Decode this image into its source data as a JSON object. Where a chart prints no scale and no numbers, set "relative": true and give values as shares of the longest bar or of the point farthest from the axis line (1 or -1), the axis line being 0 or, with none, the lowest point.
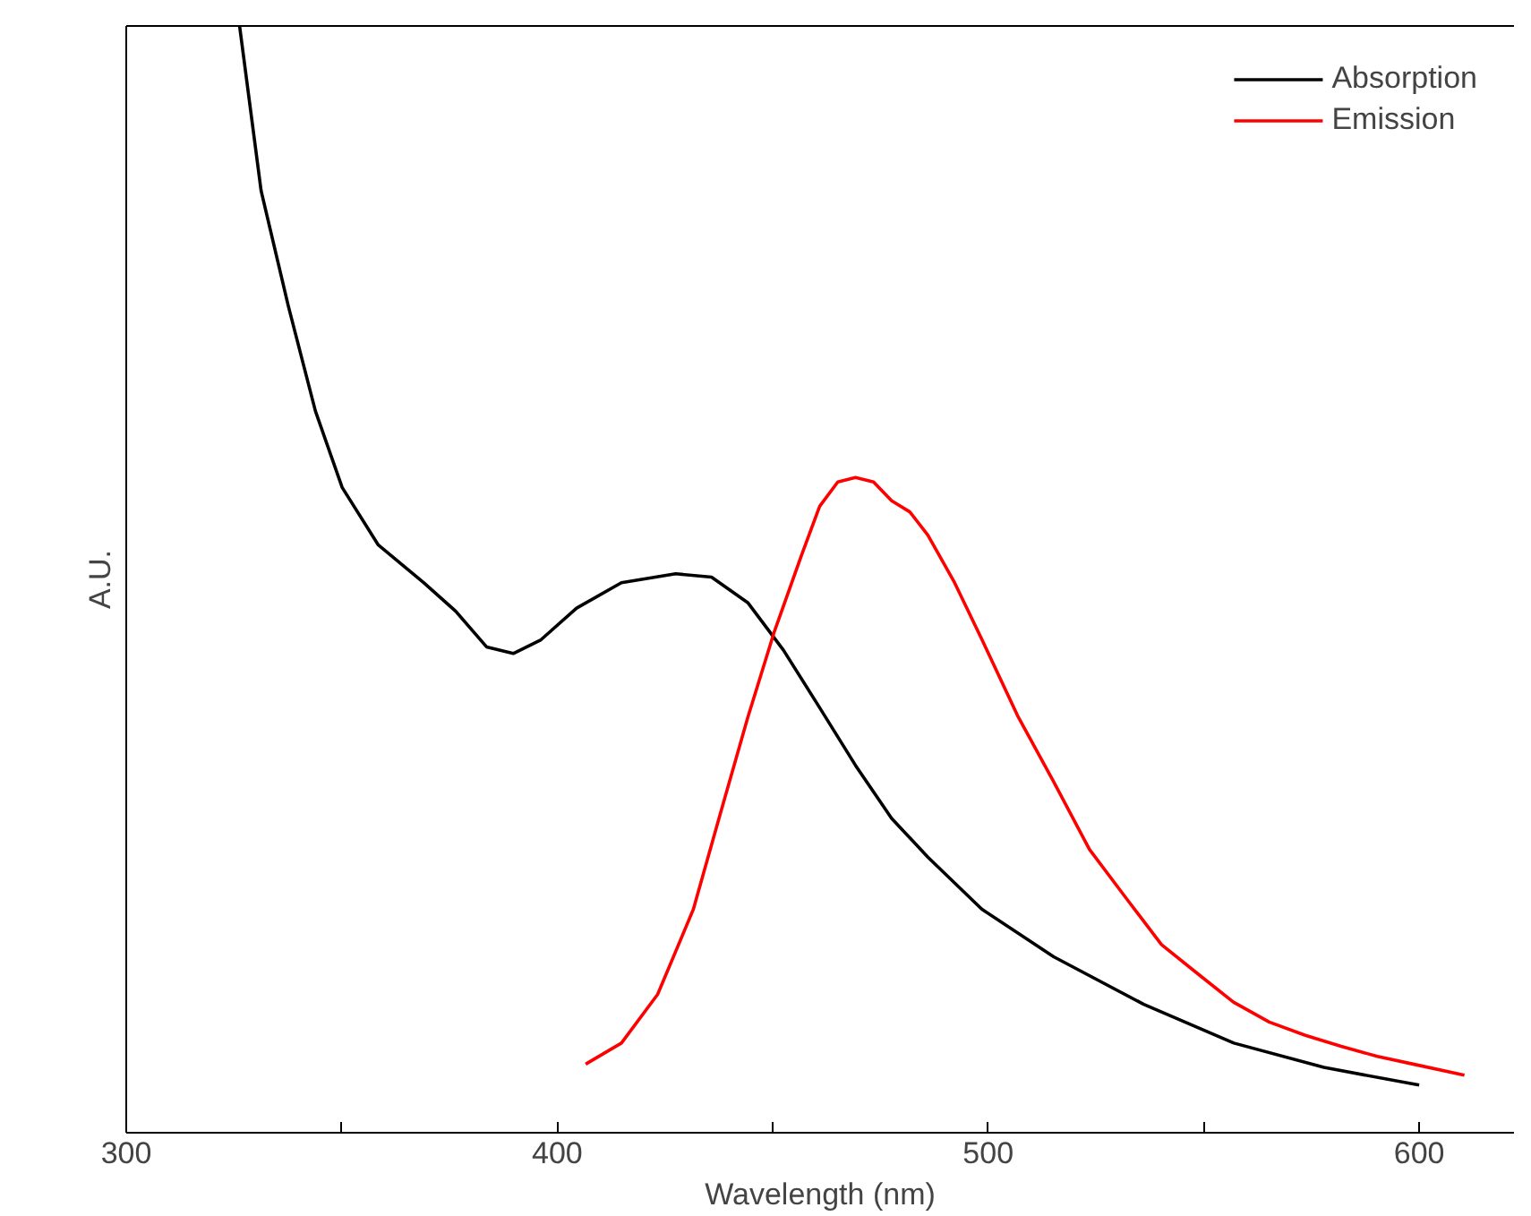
{
  "chart_data": {
    "type": "line",
    "relative": true,
    "xlabel": "Wavelength (nm)",
    "ylabel": "A.U.",
    "xlim": [
      300,
      622
    ],
    "xticks": [
      300,
      {
        "value": 350,
        "label": null
      },
      400,
      {
        "value": 450,
        "label": null
      },
      500,
      {
        "value": 550,
        "label": null
      },
      600
    ],
    "legend": "top right",
    "grid": false,
    "series": [
      {
        "name": "Absorption",
        "color": "#000000",
        "x": [
          326.3,
          331.3,
          337.6,
          343.9,
          350.1,
          358.5,
          369.0,
          376.5,
          383.6,
          389.8,
          396.1,
          404.5,
          414.9,
          427.5,
          435.8,
          444.2,
          452.5,
          460.9,
          469.2,
          477.6,
          486.0,
          498.5,
          515.2,
          536.1,
          557.0,
          577.9,
          600.0
        ],
        "values": [
          1.0,
          0.851,
          0.747,
          0.652,
          0.583,
          0.531,
          0.497,
          0.471,
          0.439,
          0.433,
          0.445,
          0.474,
          0.497,
          0.505,
          0.502,
          0.479,
          0.436,
          0.384,
          0.332,
          0.284,
          0.249,
          0.202,
          0.159,
          0.116,
          0.081,
          0.059,
          0.043
        ]
      },
      {
        "name": "Emission",
        "color": "#ff0000",
        "x": [
          406.6,
          414.9,
          423.3,
          431.6,
          437.9,
          444.2,
          450.4,
          456.7,
          460.9,
          465.1,
          469.2,
          473.4,
          477.6,
          481.8,
          486.0,
          492.2,
          498.5,
          506.8,
          515.2,
          523.5,
          531.8,
          540.2,
          548.5,
          556.9,
          565.2,
          573.6,
          581.9,
          590.3,
          598.6,
          610.5
        ],
        "values": [
          0.062,
          0.081,
          0.125,
          0.202,
          0.289,
          0.375,
          0.453,
          0.522,
          0.566,
          0.588,
          0.592,
          0.588,
          0.571,
          0.561,
          0.54,
          0.497,
          0.446,
          0.377,
          0.317,
          0.256,
          0.213,
          0.17,
          0.144,
          0.118,
          0.1,
          0.088,
          0.078,
          0.069,
          0.062,
          0.052
        ]
      }
    ]
  }
}
